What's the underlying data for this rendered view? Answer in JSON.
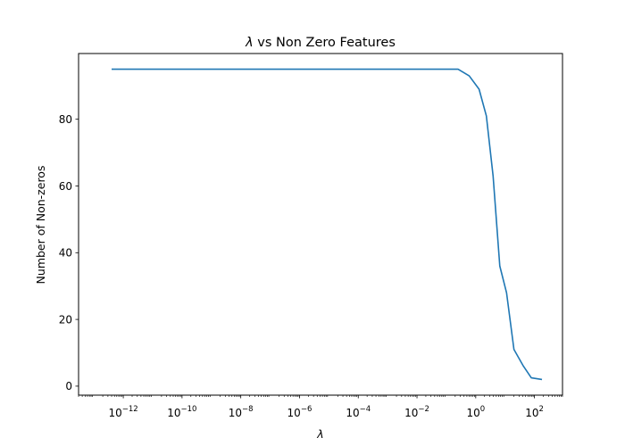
{
  "chart_data": {
    "type": "line",
    "title": "λ vs Non Zero Features",
    "title_parts": [
      "λ",
      " vs Non Zero Features"
    ],
    "xlabel": "λ",
    "ylabel": "Number of Non-zeros",
    "x_scale": "log",
    "xlim": [
      3e-14,
      900
    ],
    "ylim": [
      -2.7,
      99.7
    ],
    "x_ticks": [
      {
        "exp": -12,
        "base": "10",
        "sup": "−12"
      },
      {
        "exp": -10,
        "base": "10",
        "sup": "−10"
      },
      {
        "exp": -8,
        "base": "10",
        "sup": "−8"
      },
      {
        "exp": -6,
        "base": "10",
        "sup": "−6"
      },
      {
        "exp": -4,
        "base": "10",
        "sup": "−4"
      },
      {
        "exp": -2,
        "base": "10",
        "sup": "−2"
      },
      {
        "exp": 0,
        "base": "10",
        "sup": "0"
      },
      {
        "exp": 2,
        "base": "10",
        "sup": "2"
      }
    ],
    "y_ticks": [
      "0",
      "20",
      "40",
      "60",
      "80"
    ],
    "grid": false,
    "line_color": "#1f77b4",
    "series": [
      {
        "x": [
          4e-13,
          0.25,
          0.6,
          1.3,
          2.3,
          3.9,
          6.6,
          11.2,
          20,
          42,
          78,
          180
        ],
        "y": [
          95,
          95,
          93,
          89,
          81,
          63,
          36,
          28,
          11,
          6,
          2.5,
          2
        ]
      }
    ]
  }
}
